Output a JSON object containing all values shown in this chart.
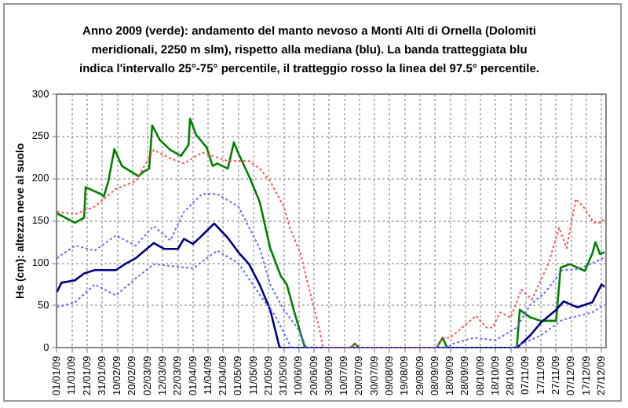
{
  "chart_data": {
    "type": "line",
    "title": "Anno 2009 (verde): andamento del manto nevoso a Monti Alti di Ornella (Dolomiti meridionali, 2250 m slm), rispetto alla mediana (blu). La banda tratteggiata blu indica l'intervallo 25°-75° percentile, il tratteggio rosso la linea del 97.5° percentile.",
    "ylabel": "Hs (cm): altezza neve al suolo",
    "xlim": [
      "2009-01-01",
      "2009-12-30"
    ],
    "xticks": [
      {
        "value": "2009-01-01",
        "label": "01/01/09"
      },
      {
        "value": "2009-01-11",
        "label": "11/01/09"
      },
      {
        "value": "2009-01-21",
        "label": "21/01/09"
      },
      {
        "value": "2009-01-31",
        "label": "31/01/09"
      },
      {
        "value": "2009-02-10",
        "label": "10/02/09"
      },
      {
        "value": "2009-02-20",
        "label": "20/02/09"
      },
      {
        "value": "2009-03-02",
        "label": "02/03/09"
      },
      {
        "value": "2009-03-12",
        "label": "12/03/09"
      },
      {
        "value": "2009-03-22",
        "label": "22/03/09"
      },
      {
        "value": "2009-04-01",
        "label": "01/04/09"
      },
      {
        "value": "2009-04-11",
        "label": "11/04/09"
      },
      {
        "value": "2009-04-21",
        "label": "21/04/09"
      },
      {
        "value": "2009-05-01",
        "label": "01/05/09"
      },
      {
        "value": "2009-05-11",
        "label": "11/05/09"
      },
      {
        "value": "2009-05-21",
        "label": "21/05/09"
      },
      {
        "value": "2009-05-31",
        "label": "31/05/09"
      },
      {
        "value": "2009-06-10",
        "label": "10/06/09"
      },
      {
        "value": "2009-06-20",
        "label": "20/06/09"
      },
      {
        "value": "2009-06-30",
        "label": "30/06/09"
      },
      {
        "value": "2009-07-10",
        "label": "10/07/09"
      },
      {
        "value": "2009-07-20",
        "label": "20/07/09"
      },
      {
        "value": "2009-07-30",
        "label": "30/07/09"
      },
      {
        "value": "2009-08-09",
        "label": "09/08/09"
      },
      {
        "value": "2009-08-19",
        "label": "19/08/09"
      },
      {
        "value": "2009-08-29",
        "label": "29/08/09"
      },
      {
        "value": "2009-09-08",
        "label": "08/09/09"
      },
      {
        "value": "2009-09-18",
        "label": "18/09/09"
      },
      {
        "value": "2009-09-28",
        "label": "28/09/09"
      },
      {
        "value": "2009-10-08",
        "label": "08/10/09"
      },
      {
        "value": "2009-10-18",
        "label": "18/10/09"
      },
      {
        "value": "2009-10-28",
        "label": "28/10/09"
      },
      {
        "value": "2009-11-07",
        "label": "07/11/09"
      },
      {
        "value": "2009-11-17",
        "label": "17/11/09"
      },
      {
        "value": "2009-11-27",
        "label": "27/11/09"
      },
      {
        "value": "2009-12-07",
        "label": "07/12/09"
      },
      {
        "value": "2009-12-17",
        "label": "17/12/09"
      },
      {
        "value": "2009-12-27",
        "label": "27/12/09"
      }
    ],
    "ylim": [
      0,
      300
    ],
    "yticks": [
      0,
      50,
      100,
      150,
      200,
      250,
      300
    ],
    "grid": true,
    "legend": false,
    "marker": "none",
    "series": [
      {
        "color": "#ff5050",
        "line_style": "dotted",
        "x": [
          "2009-01-01",
          "2009-01-13",
          "2009-01-26",
          "2009-02-09",
          "2009-02-22",
          "2009-03-06",
          "2009-03-17",
          "2009-03-26",
          "2009-04-07",
          "2009-04-24",
          "2009-05-08",
          "2009-05-15",
          "2009-05-22",
          "2009-05-31",
          "2009-06-04",
          "2009-06-11",
          "2009-06-16",
          "2009-06-23",
          "2009-06-26",
          "2009-07-14",
          "2009-07-17",
          "2009-07-20",
          "2009-09-09",
          "2009-09-13",
          "2009-09-18",
          "2009-09-28",
          "2009-10-05",
          "2009-10-12",
          "2009-10-16",
          "2009-10-21",
          "2009-10-28",
          "2009-11-04",
          "2009-11-11",
          "2009-11-22",
          "2009-11-29",
          "2009-12-04",
          "2009-12-10",
          "2009-12-15",
          "2009-12-22",
          "2009-12-27",
          "2009-12-29"
        ],
        "values": [
          161,
          158,
          167,
          188,
          197,
          234,
          224,
          218,
          231,
          221,
          221,
          212,
          197,
          167,
          142,
          112,
          75,
          27,
          0,
          0,
          5,
          0,
          0,
          12,
          12,
          27,
          38,
          24,
          24,
          42,
          36,
          69,
          57,
          100,
          142,
          118,
          176,
          167,
          148,
          148,
          155
        ]
      },
      {
        "color": "#6666ff",
        "line_style": "dotted",
        "x": [
          "2009-01-01",
          "2009-01-13",
          "2009-01-26",
          "2009-02-09",
          "2009-02-22",
          "2009-03-06",
          "2009-03-17",
          "2009-03-26",
          "2009-04-07",
          "2009-04-17",
          "2009-05-01",
          "2009-05-15",
          "2009-05-22",
          "2009-05-31",
          "2009-06-10",
          "2009-06-15",
          "2009-09-16",
          "2009-09-20",
          "2009-10-04",
          "2009-10-18",
          "2009-11-01",
          "2009-11-10",
          "2009-11-20",
          "2009-12-01",
          "2009-12-11",
          "2009-12-21",
          "2009-12-29"
        ],
        "values": [
          106,
          121,
          115,
          133,
          121,
          144,
          127,
          161,
          182,
          182,
          167,
          118,
          75,
          45,
          21,
          0,
          0,
          5,
          12,
          9,
          24,
          51,
          66,
          92,
          93,
          100,
          107
        ]
      },
      {
        "color": "#6666ff",
        "line_style": "dotted",
        "x": [
          "2009-01-01",
          "2009-01-13",
          "2009-01-26",
          "2009-02-09",
          "2009-02-22",
          "2009-03-06",
          "2009-03-17",
          "2009-04-01",
          "2009-04-17",
          "2009-05-01",
          "2009-05-15",
          "2009-05-25",
          "2009-05-31",
          "2009-06-05",
          "2009-10-28",
          "2009-11-01",
          "2009-11-17",
          "2009-12-01",
          "2009-12-21",
          "2009-12-29"
        ],
        "values": [
          48,
          54,
          75,
          62,
          82,
          99,
          97,
          94,
          115,
          100,
          63,
          39,
          18,
          0,
          0,
          2,
          15,
          33,
          42,
          51
        ]
      },
      {
        "color": "#000080",
        "line_style": "solid",
        "x": [
          "2009-01-01",
          "2009-01-04",
          "2009-01-13",
          "2009-01-19",
          "2009-01-26",
          "2009-02-09",
          "2009-02-15",
          "2009-02-22",
          "2009-03-06",
          "2009-03-13",
          "2009-03-22",
          "2009-03-26",
          "2009-04-01",
          "2009-04-07",
          "2009-04-15",
          "2009-04-24",
          "2009-05-01",
          "2009-05-08",
          "2009-05-15",
          "2009-05-22",
          "2009-05-28",
          "2009-05-29",
          "2009-11-01",
          "2009-11-10",
          "2009-11-17",
          "2009-11-27",
          "2009-12-02",
          "2009-12-11",
          "2009-12-21",
          "2009-12-27",
          "2009-12-29"
        ],
        "values": [
          66,
          77,
          80,
          88,
          92,
          92,
          99,
          106,
          124,
          117,
          117,
          129,
          123,
          133,
          147,
          130,
          113,
          99,
          75,
          45,
          2,
          0,
          0,
          15,
          30,
          45,
          55,
          48,
          54,
          75,
          72
        ]
      },
      {
        "color": "#008000",
        "line_style": "solid",
        "x": [
          "2009-01-01",
          "2009-01-13",
          "2009-01-19",
          "2009-01-20",
          "2009-01-30",
          "2009-02-01",
          "2009-02-04",
          "2009-02-08",
          "2009-02-13",
          "2009-02-24",
          "2009-02-27",
          "2009-03-03",
          "2009-03-05",
          "2009-03-10",
          "2009-03-17",
          "2009-03-24",
          "2009-03-29",
          "2009-03-30",
          "2009-04-03",
          "2009-04-10",
          "2009-04-14",
          "2009-04-17",
          "2009-04-24",
          "2009-04-28",
          "2009-05-01",
          "2009-05-08",
          "2009-05-15",
          "2009-05-22",
          "2009-05-29",
          "2009-06-02",
          "2009-06-07",
          "2009-06-14",
          "2009-07-14",
          "2009-07-17",
          "2009-07-20",
          "2009-09-09",
          "2009-09-13",
          "2009-09-16",
          "2009-11-01",
          "2009-11-03",
          "2009-11-10",
          "2009-11-17",
          "2009-11-27",
          "2009-11-30",
          "2009-12-06",
          "2009-12-16",
          "2009-12-21",
          "2009-12-23",
          "2009-12-26",
          "2009-12-29"
        ],
        "values": [
          159,
          148,
          154,
          190,
          182,
          179,
          197,
          235,
          215,
          203,
          208,
          212,
          263,
          246,
          234,
          227,
          240,
          271,
          252,
          237,
          215,
          218,
          212,
          243,
          230,
          203,
          173,
          118,
          85,
          75,
          42,
          0,
          0,
          5,
          0,
          0,
          12,
          0,
          0,
          45,
          36,
          32,
          32,
          95,
          99,
          91,
          112,
          125,
          111,
          113
        ]
      }
    ]
  }
}
